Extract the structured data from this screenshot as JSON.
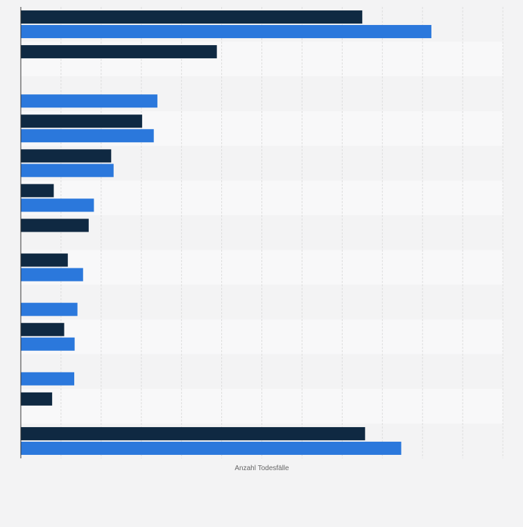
{
  "chart_data": {
    "type": "bar",
    "orientation": "horizontal",
    "xlabel": "Anzahl Todesfälle",
    "ylabel": "",
    "title": "",
    "grid": true,
    "legend": "none",
    "xlim": [
      0,
      12
    ],
    "group_count": 13,
    "series": [
      {
        "color": "#0f2942",
        "values": [
          8.5,
          4.88,
          null,
          3.02,
          2.25,
          0.82,
          1.69,
          1.17,
          null,
          1.08,
          null,
          0.78,
          8.57
        ]
      },
      {
        "color": "#2b78dc",
        "values": [
          10.22,
          null,
          3.4,
          3.31,
          2.31,
          1.82,
          null,
          1.55,
          1.41,
          1.34,
          1.33,
          null,
          9.47
        ]
      }
    ]
  }
}
